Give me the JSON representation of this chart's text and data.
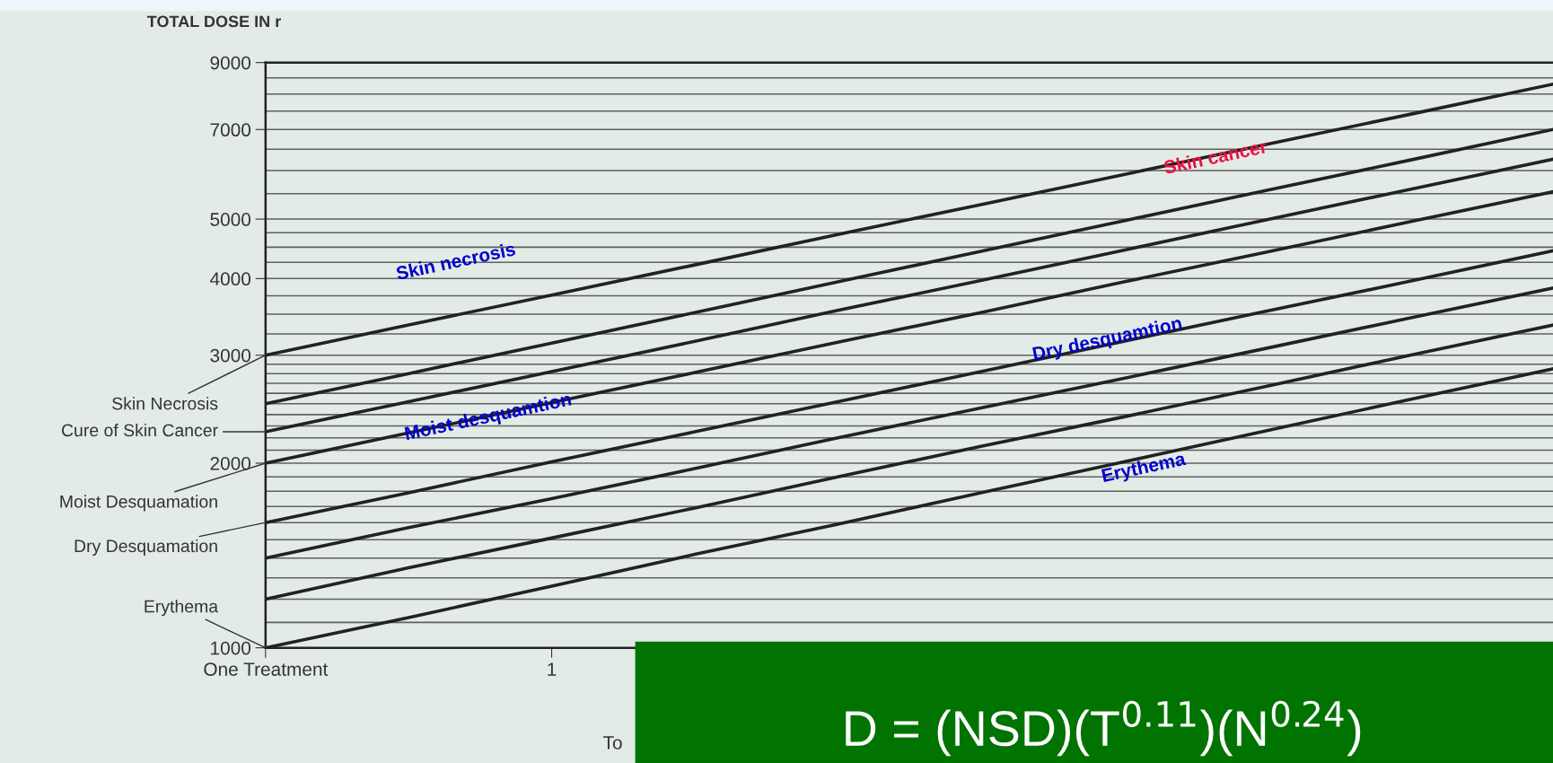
{
  "chart_data": {
    "type": "line",
    "ylabel": "TOTAL DOSE IN r",
    "xlabel": "To",
    "log": "y",
    "ylim": [
      1000,
      9000
    ],
    "categories": [
      "One Treatment",
      null,
      "1",
      null,
      null,
      null,
      null,
      null,
      null,
      null
    ],
    "yticks": [
      1000,
      {
        "value": 1100,
        "label": null
      },
      {
        "value": 1200,
        "label": null
      },
      {
        "value": 1300,
        "label": null
      },
      {
        "value": 1400,
        "label": null
      },
      {
        "value": 1500,
        "label": null
      },
      {
        "value": 1600,
        "label": null
      },
      {
        "value": 1700,
        "label": null
      },
      {
        "value": 1800,
        "label": null
      },
      {
        "value": 1900,
        "label": null
      },
      2000,
      {
        "value": 2100,
        "label": null
      },
      {
        "value": 2200,
        "label": null
      },
      {
        "value": 2300,
        "label": null
      },
      {
        "value": 2400,
        "label": null
      },
      {
        "value": 2500,
        "label": null
      },
      {
        "value": 2600,
        "label": null
      },
      {
        "value": 2700,
        "label": null
      },
      {
        "value": 2800,
        "label": null
      },
      {
        "value": 2900,
        "label": null
      },
      3000,
      {
        "value": 3250,
        "label": null
      },
      {
        "value": 3500,
        "label": null
      },
      {
        "value": 3750,
        "label": null
      },
      4000,
      {
        "value": 4250,
        "label": null
      },
      {
        "value": 4500,
        "label": null
      },
      {
        "value": 4750,
        "label": null
      },
      5000,
      {
        "value": 5500,
        "label": null
      },
      {
        "value": 6000,
        "label": null
      },
      {
        "value": 6500,
        "label": null
      },
      7000,
      {
        "value": 7500,
        "label": null
      },
      {
        "value": 8000,
        "label": null
      },
      {
        "value": 8500,
        "label": null
      },
      9000
    ],
    "grid": "y",
    "marker": "none",
    "line_style": "solid",
    "series": [
      {
        "name": "Skin Necrosis",
        "color": "#222222",
        "values": [
          3000,
          3360,
          3760,
          4210,
          4720,
          5280,
          5910,
          6620,
          7410,
          8300
        ]
      },
      {
        "color": "#222222",
        "values": [
          2500,
          2800,
          3140,
          3520,
          3950,
          4430,
          4970,
          5570,
          6240,
          7000
        ]
      },
      {
        "name": "Cure of Skin Cancer",
        "color": "#222222",
        "values": [
          2250,
          2520,
          2820,
          3160,
          3550,
          3970,
          4450,
          4990,
          5590,
          6260
        ]
      },
      {
        "name": "Moist Desquamation",
        "color": "#222222",
        "values": [
          2000,
          2240,
          2510,
          2810,
          3150,
          3520,
          3950,
          4420,
          4950,
          5540
        ]
      },
      {
        "name": "Dry Desquamation",
        "color": "#222222",
        "values": [
          1600,
          1790,
          2010,
          2250,
          2520,
          2820,
          3160,
          3540,
          3960,
          4440
        ]
      },
      {
        "color": "#222222",
        "values": [
          1400,
          1570,
          1750,
          1960,
          2200,
          2460,
          2750,
          3080,
          3450,
          3860
        ]
      },
      {
        "color": "#222222",
        "values": [
          1200,
          1350,
          1510,
          1690,
          1900,
          2130,
          2380,
          2670,
          3000,
          3360
        ]
      },
      {
        "name": "Erythema",
        "color": "#222222",
        "values": [
          1000,
          1120,
          1260,
          1420,
          1590,
          1790,
          2010,
          2260,
          2540,
          2850
        ]
      }
    ],
    "annotations": [
      "Skin necrosis",
      "Moist desquamtion",
      "Skin cancer",
      "Dry desquamtion",
      "Erythema",
      "D = (NSD)(T$^{0.11}$)(N$^{0.24}$)"
    ]
  }
}
